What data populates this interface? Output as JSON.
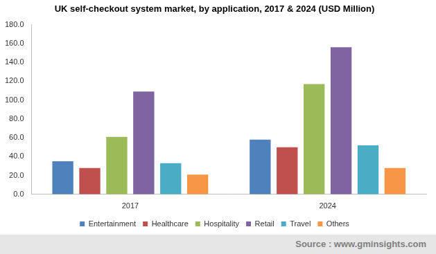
{
  "chart_data": {
    "type": "bar",
    "title": "UK self-checkout system market, by application, 2017 & 2024 (USD Million)",
    "categories": [
      "2017",
      "2024"
    ],
    "series": [
      {
        "name": "Entertainment",
        "color": "#4f81bd",
        "values": [
          35,
          58
        ]
      },
      {
        "name": "Healthcare",
        "color": "#c0504d",
        "values": [
          28,
          50
        ]
      },
      {
        "name": "Hospitality",
        "color": "#9bbb59",
        "values": [
          61,
          117
        ]
      },
      {
        "name": "Retail",
        "color": "#8064a2",
        "values": [
          109,
          156
        ]
      },
      {
        "name": "Travel",
        "color": "#4bacc6",
        "values": [
          33,
          52
        ]
      },
      {
        "name": "Others",
        "color": "#f79646",
        "values": [
          21,
          28
        ]
      }
    ],
    "ylim": [
      0,
      180
    ],
    "yticks": [
      {
        "value": 0,
        "label": "0.0"
      },
      {
        "value": 20,
        "label": "20.0"
      },
      {
        "value": 40,
        "label": "40.0"
      },
      {
        "value": 60,
        "label": "60.0"
      },
      {
        "value": 80,
        "label": "80.0"
      },
      {
        "value": 100,
        "label": "100.0"
      },
      {
        "value": 120,
        "label": "120.0"
      },
      {
        "value": 140,
        "label": "140.0"
      },
      {
        "value": 160,
        "label": "160.0"
      },
      {
        "value": 180,
        "label": "180.0"
      }
    ],
    "grid": false,
    "legend": "bottom",
    "source": "Source : www.gminsights.com"
  }
}
